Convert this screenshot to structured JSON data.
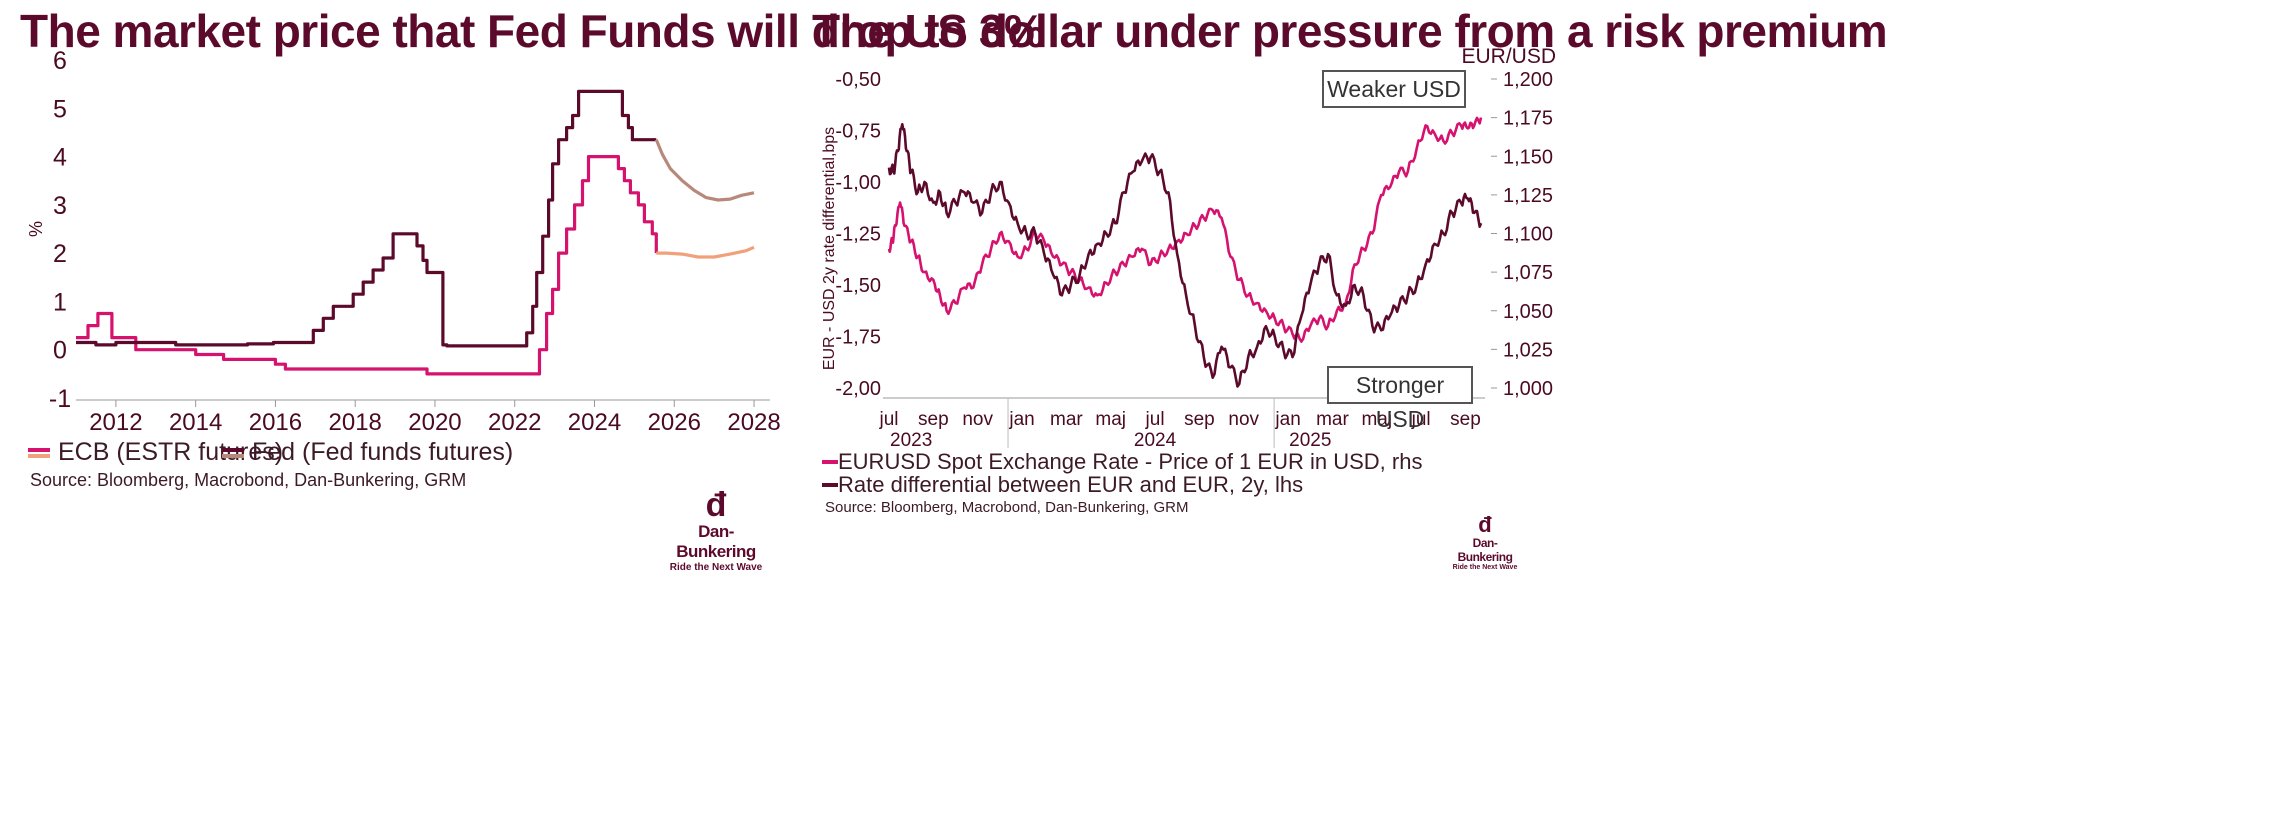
{
  "left": {
    "title": "The market price that Fed Funds will drop to 3%",
    "legend": [
      "ECB (ESTR futures)",
      "Fed (Fed funds futures)"
    ],
    "source": "Source: Bloomberg, Macrobond, Dan-Bunkering, GRM"
  },
  "right": {
    "title": "The US dollar under pressure from a risk premium",
    "legend": [
      "EURUSD Spot Exchange Rate - Price of 1 EUR in USD, rhs",
      "Rate differential between EUR and EUR, 2y, lhs"
    ],
    "source": "Source: Bloomberg, Macrobond, Dan-Bunkering, GRM",
    "annotations": [
      "Weaker USD",
      "Stronger USD"
    ]
  },
  "logo": {
    "brand": "Dan-Bunkering",
    "tagline": "Ride the Next Wave"
  },
  "colors": {
    "pink": "#d6126f",
    "maroon": "#5c0a2c",
    "salmon": "#f0a07a",
    "taupe": "#b8897a"
  },
  "chart_data": [
    {
      "type": "line",
      "title": "The market price that Fed Funds will drop to 3%",
      "ylabel": "%",
      "ylim": [
        -1,
        6
      ],
      "xlim": [
        2011,
        2028.4
      ],
      "yticks": [
        "6",
        "5",
        "4",
        "3",
        "2",
        "1",
        "0",
        "-1"
      ],
      "xticks": [
        "2012",
        "2014",
        "2016",
        "2018",
        "2020",
        "2022",
        "2024",
        "2026",
        "2028"
      ],
      "series": [
        {
          "name": "ECB (ESTR futures)",
          "style": "step",
          "color": "#d6126f",
          "x": [
            2011.0,
            2011.3,
            2011.55,
            2011.9,
            2012.5,
            2014.0,
            2014.7,
            2016.0,
            2016.25,
            2019.0,
            2019.8,
            2022.5,
            2022.62,
            2022.8,
            2022.95,
            2023.1,
            2023.3,
            2023.5,
            2023.7,
            2023.85,
            2024.45,
            2024.6,
            2024.75,
            2024.9,
            2025.1,
            2025.25,
            2025.45,
            2025.55
          ],
          "y": [
            0.25,
            0.5,
            0.75,
            0.25,
            0.0,
            -0.1,
            -0.2,
            -0.3,
            -0.4,
            -0.4,
            -0.5,
            -0.5,
            0.0,
            0.75,
            1.25,
            2.0,
            2.5,
            3.0,
            3.5,
            4.0,
            4.0,
            3.75,
            3.5,
            3.25,
            3.0,
            2.65,
            2.4,
            2.0
          ]
        },
        {
          "name": "ECB (ESTR futures) forward",
          "style": "line",
          "color": "#f0a07a",
          "x": [
            2025.55,
            2025.8,
            2026.2,
            2026.6,
            2027.0,
            2027.4,
            2027.8,
            2028.0
          ],
          "y": [
            2.0,
            2.0,
            1.98,
            1.92,
            1.92,
            1.98,
            2.05,
            2.12
          ]
        },
        {
          "name": "Fed (Fed funds futures)",
          "style": "step",
          "color": "#5c0a2c",
          "x": [
            2011.0,
            2011.5,
            2012.0,
            2012.5,
            2013.5,
            2014.5,
            2015.3,
            2015.95,
            2016.95,
            2017.2,
            2017.45,
            2017.95,
            2018.2,
            2018.45,
            2018.7,
            2018.95,
            2019.55,
            2019.7,
            2019.8,
            2020.2,
            2020.3,
            2022.2,
            2022.3,
            2022.45,
            2022.55,
            2022.7,
            2022.85,
            2022.95,
            2023.1,
            2023.3,
            2023.45,
            2023.6,
            2024.7,
            2024.85,
            2024.95,
            2025.55
          ],
          "y": [
            0.15,
            0.1,
            0.15,
            0.15,
            0.1,
            0.1,
            0.12,
            0.15,
            0.4,
            0.65,
            0.9,
            1.15,
            1.4,
            1.65,
            1.9,
            2.4,
            2.15,
            1.85,
            1.6,
            0.1,
            0.08,
            0.08,
            0.35,
            0.9,
            1.6,
            2.35,
            3.1,
            3.85,
            4.35,
            4.6,
            4.85,
            5.35,
            4.85,
            4.6,
            4.35,
            4.35
          ]
        },
        {
          "name": "Fed (Fed funds futures) forward",
          "style": "line",
          "color": "#b8897a",
          "x": [
            2025.55,
            2025.7,
            2025.9,
            2026.2,
            2026.5,
            2026.8,
            2027.1,
            2027.4,
            2027.7,
            2028.0
          ],
          "y": [
            4.35,
            4.05,
            3.75,
            3.5,
            3.3,
            3.15,
            3.1,
            3.12,
            3.2,
            3.25
          ]
        }
      ]
    },
    {
      "type": "line",
      "title": "The US dollar under pressure from a risk premium",
      "ylabel": "EUR - USD 2y rate differential,bps",
      "y2label": "EUR/USD",
      "ylim": [
        -2.0,
        -0.5
      ],
      "y2lim": [
        1.0,
        1.2
      ],
      "yticks": [
        "-0,50",
        "-0,75",
        "-1,00",
        "-1,25",
        "-1,50",
        "-1,75",
        "-2,00"
      ],
      "y2ticks": [
        "1,200",
        "1,175",
        "1,150",
        "1,125",
        "1,100",
        "1,075",
        "1,050",
        "1,025",
        "1,000"
      ],
      "xticks": [
        "jul",
        "sep",
        "nov",
        "jan",
        "mar",
        "maj",
        "jul",
        "sep",
        "nov",
        "jan",
        "mar",
        "maj",
        "jul",
        "sep"
      ],
      "xyears": [
        "2023",
        "2024",
        "2025"
      ],
      "x_unit": "months since Jul 2023",
      "series": [
        {
          "name": "EURUSD Spot Exchange Rate - Price of 1 EUR in USD, rhs",
          "axis": "right",
          "color": "#d6126f",
          "x": [
            0.0,
            0.15,
            0.3,
            0.5,
            0.7,
            1.0,
            1.3,
            1.6,
            2.0,
            2.3,
            2.6,
            3.0,
            3.4,
            3.8,
            4.2,
            4.6,
            5.0,
            5.4,
            5.8,
            6.2,
            6.6,
            7.0,
            7.4,
            7.8,
            8.2,
            8.6,
            9.0,
            9.4,
            9.8,
            10.2,
            10.6,
            11.0,
            11.4,
            11.8,
            12.2,
            12.6,
            13.0,
            13.4,
            13.8,
            14.2,
            14.6,
            15.0,
            15.4,
            15.8,
            16.2,
            16.6,
            17.0,
            17.4,
            17.8,
            18.2,
            18.6,
            19.0,
            19.4,
            19.8,
            20.2,
            20.6,
            21.0,
            21.4,
            21.8,
            22.2,
            22.6,
            23.0,
            23.4,
            23.8,
            24.2,
            24.6,
            25.0,
            25.4,
            25.8,
            26.1,
            26.4,
            26.7
          ],
          "y": [
            1.09,
            1.095,
            1.105,
            1.12,
            1.105,
            1.095,
            1.085,
            1.075,
            1.07,
            1.06,
            1.05,
            1.055,
            1.065,
            1.065,
            1.08,
            1.09,
            1.1,
            1.095,
            1.085,
            1.09,
            1.1,
            1.095,
            1.085,
            1.08,
            1.075,
            1.07,
            1.065,
            1.06,
            1.068,
            1.075,
            1.08,
            1.085,
            1.09,
            1.08,
            1.085,
            1.09,
            1.095,
            1.1,
            1.105,
            1.11,
            1.115,
            1.11,
            1.085,
            1.07,
            1.06,
            1.055,
            1.05,
            1.045,
            1.04,
            1.035,
            1.03,
            1.04,
            1.045,
            1.04,
            1.05,
            1.055,
            1.08,
            1.09,
            1.1,
            1.125,
            1.13,
            1.14,
            1.14,
            1.155,
            1.17,
            1.165,
            1.16,
            1.165,
            1.17,
            1.168,
            1.17,
            1.175
          ]
        },
        {
          "name": "Rate differential between EUR and EUR, 2y, lhs",
          "axis": "left",
          "color": "#5c0a2c",
          "x": [
            0.0,
            0.2,
            0.4,
            0.6,
            0.8,
            1.0,
            1.3,
            1.6,
            2.0,
            2.3,
            2.6,
            3.0,
            3.4,
            3.8,
            4.2,
            4.6,
            5.0,
            5.4,
            5.8,
            6.2,
            6.6,
            7.0,
            7.4,
            7.8,
            8.2,
            8.6,
            9.0,
            9.4,
            9.8,
            10.2,
            10.6,
            11.0,
            11.4,
            11.8,
            12.2,
            12.6,
            13.0,
            13.4,
            13.8,
            14.2,
            14.6,
            15.0,
            15.4,
            15.8,
            16.2,
            16.6,
            17.0,
            17.4,
            17.8,
            18.2,
            18.6,
            19.0,
            19.4,
            19.8,
            20.2,
            20.6,
            21.0,
            21.4,
            21.8,
            22.2,
            22.6,
            23.0,
            23.4,
            23.8,
            24.2,
            24.6,
            25.0,
            25.4,
            25.8,
            26.1,
            26.4,
            26.7
          ],
          "y": [
            -0.93,
            -0.95,
            -0.85,
            -0.72,
            -0.85,
            -0.95,
            -1.05,
            -1.0,
            -1.1,
            -1.05,
            -1.15,
            -1.1,
            -1.05,
            -1.1,
            -1.15,
            -1.05,
            -1.0,
            -1.1,
            -1.2,
            -1.25,
            -1.25,
            -1.35,
            -1.45,
            -1.55,
            -1.5,
            -1.45,
            -1.35,
            -1.3,
            -1.25,
            -1.2,
            -1.05,
            -0.95,
            -0.9,
            -0.88,
            -0.95,
            -1.05,
            -1.35,
            -1.55,
            -1.7,
            -1.85,
            -1.95,
            -1.8,
            -1.9,
            -1.98,
            -1.85,
            -1.8,
            -1.7,
            -1.75,
            -1.82,
            -1.85,
            -1.65,
            -1.5,
            -1.4,
            -1.35,
            -1.55,
            -1.6,
            -1.5,
            -1.55,
            -1.7,
            -1.72,
            -1.65,
            -1.6,
            -1.55,
            -1.5,
            -1.4,
            -1.3,
            -1.25,
            -1.15,
            -1.1,
            -1.08,
            -1.15,
            -1.2
          ]
        }
      ]
    }
  ]
}
